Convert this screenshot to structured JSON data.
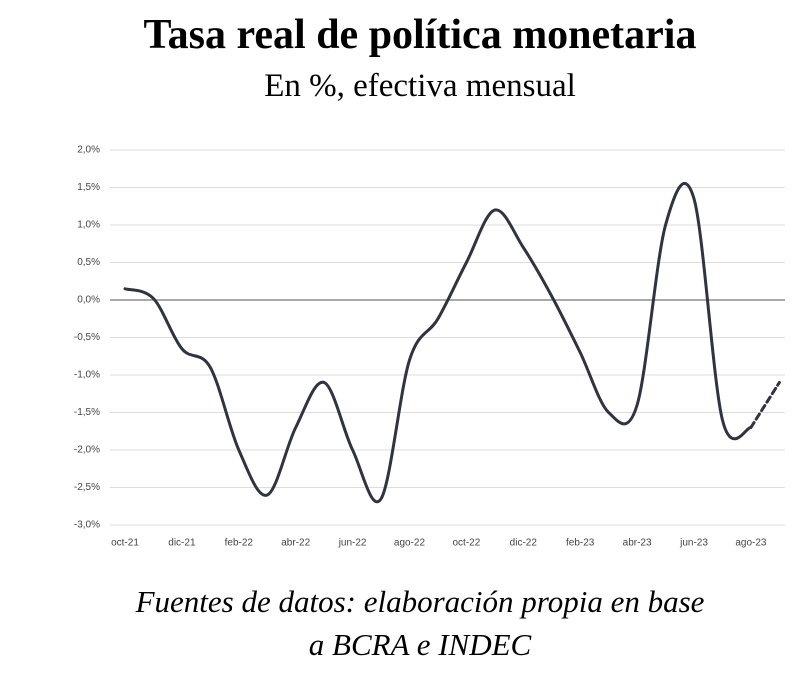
{
  "chart_data": {
    "type": "line",
    "title": "Tasa real de política monetaria",
    "subtitle": "En %, efectiva mensual",
    "note_lines": [
      "Fuentes de datos: elaboración propia en base",
      "a BCRA e INDEC"
    ],
    "categories": [
      "oct-21",
      null,
      "dic-21",
      null,
      "feb-22",
      null,
      "abr-22",
      null,
      "jun-22",
      null,
      "ago-22",
      null,
      "oct-22",
      null,
      "dic-22",
      null,
      "feb-23",
      null,
      "abr-23",
      null,
      "jun-23",
      null,
      "ago-23",
      null
    ],
    "series": [
      {
        "color": "#2f3440",
        "dashed": false,
        "values": [
          0.15,
          0.02,
          -0.65,
          -0.9,
          -2.0,
          -2.6,
          -1.7,
          -1.1,
          -2.0,
          -2.65,
          -0.8,
          -0.25,
          0.5,
          1.2,
          0.7,
          0.05,
          -0.7,
          -1.5,
          -1.4,
          1.0,
          1.35,
          -1.6,
          -1.7,
          null
        ]
      },
      {
        "color": "#2f3440",
        "dashed": true,
        "values": [
          null,
          null,
          null,
          null,
          null,
          null,
          null,
          null,
          null,
          null,
          null,
          null,
          null,
          null,
          null,
          null,
          null,
          null,
          null,
          null,
          null,
          null,
          -1.7,
          -1.1
        ]
      }
    ],
    "ylim": [
      -3.0,
      2.0
    ],
    "yticks": [
      {
        "value": -3.0,
        "label": "-3,0%"
      },
      {
        "value": -2.5,
        "label": "-2,5%"
      },
      {
        "value": -2.0,
        "label": "-2,0%"
      },
      {
        "value": -1.5,
        "label": "-1,5%"
      },
      {
        "value": -1.0,
        "label": "-1,0%"
      },
      {
        "value": -0.5,
        "label": "-0,5%"
      },
      {
        "value": 0,
        "label": "0,0%"
      },
      {
        "value": 0.5,
        "label": "0,5%"
      },
      {
        "value": 1.0,
        "label": "1,0%"
      },
      {
        "value": 1.5,
        "label": "1,5%"
      },
      {
        "value": 2.0,
        "label": "2,0%"
      }
    ],
    "grid": true
  }
}
